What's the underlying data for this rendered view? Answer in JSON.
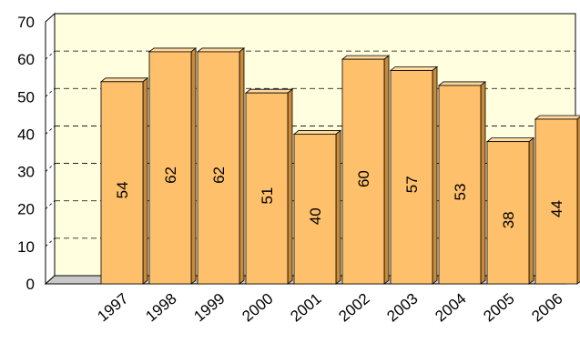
{
  "chart_data": {
    "type": "bar",
    "title": "",
    "xlabel": "",
    "ylabel": "",
    "categories": [
      "1997",
      "1998",
      "1999",
      "2000",
      "2001",
      "2002",
      "2003",
      "2004",
      "2005",
      "2006"
    ],
    "values": [
      54,
      62,
      62,
      51,
      40,
      60,
      57,
      53,
      38,
      44
    ],
    "ylim": [
      0,
      70
    ],
    "yticks": [
      0,
      10,
      20,
      30,
      40,
      50,
      60,
      70
    ],
    "grid": "horizontal dashed",
    "legend": "none",
    "colors": {
      "plot_background": "#FFFFE0",
      "bar_front": "#FFC06C",
      "bar_top": "#FFD89E",
      "bar_side": "#C98A3A",
      "bar_stroke": "#000000",
      "floor": "#C8C8C8"
    }
  }
}
